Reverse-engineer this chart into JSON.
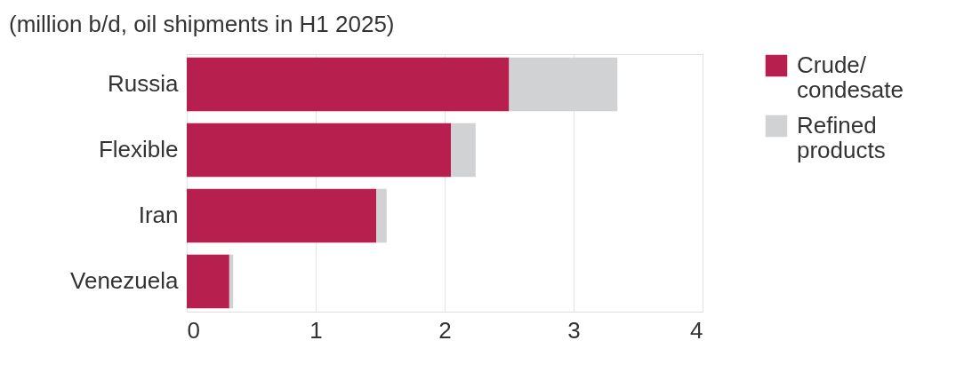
{
  "chart_data": {
    "type": "bar",
    "orientation": "horizontal",
    "stacked": true,
    "title": "(million b/d, oil shipments in H1 2025)",
    "categories": [
      "Russia",
      "Flexible",
      "Iran",
      "Venezuela"
    ],
    "series": [
      {
        "name": "Crude/ condesate",
        "color": "#b71f4e",
        "values": [
          2.5,
          2.05,
          1.47,
          0.33
        ]
      },
      {
        "name": "Refined products",
        "color": "#d1d2d4",
        "values": [
          0.84,
          0.19,
          0.08,
          0.03
        ]
      }
    ],
    "xlim": [
      0,
      4
    ],
    "xticks": [
      0,
      1,
      2,
      3,
      4
    ],
    "grid": "x",
    "legend": "top right"
  }
}
